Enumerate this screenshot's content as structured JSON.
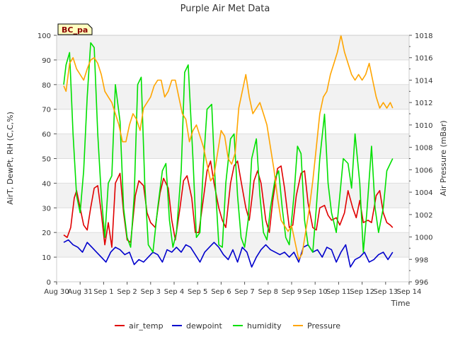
{
  "chart_data": {
    "type": "line",
    "title": "Purple Air Met Data",
    "xlabel": "Time",
    "ylabel_left": "AirT, DewPt, RH (C,C,%)",
    "ylabel_right": "Air Pressure (mBar)",
    "station_label": "BC_pa",
    "ylim_left": [
      0,
      100
    ],
    "ylim_right": [
      996,
      1018
    ],
    "xlim": [
      0,
      15
    ],
    "left_ticks": [
      0,
      10,
      20,
      30,
      40,
      50,
      60,
      70,
      80,
      90,
      100
    ],
    "right_ticks": [
      996,
      998,
      1000,
      1002,
      1004,
      1006,
      1008,
      1010,
      1012,
      1014,
      1016,
      1018
    ],
    "x_ticks": [
      {
        "v": 0,
        "label": "Aug 30"
      },
      {
        "v": 1,
        "label": "Aug 31"
      },
      {
        "v": 2,
        "label": "Sep 1"
      },
      {
        "v": 3,
        "label": "Sep 2"
      },
      {
        "v": 4,
        "label": "Sep 3"
      },
      {
        "v": 5,
        "label": "Sep 4"
      },
      {
        "v": 6,
        "label": "Sep 5"
      },
      {
        "v": 7,
        "label": "Sep 6"
      },
      {
        "v": 8,
        "label": "Sep 7"
      },
      {
        "v": 9,
        "label": "Sep 8"
      },
      {
        "v": 10,
        "label": "Sep 9"
      },
      {
        "v": 11,
        "label": "Sep 10"
      },
      {
        "v": 12,
        "label": "Sep 11"
      },
      {
        "v": 13,
        "label": "Sep 12"
      },
      {
        "v": 14,
        "label": "Sep 13"
      },
      {
        "v": 15,
        "label": "Sep 14"
      }
    ],
    "grid": true,
    "legend_position": "bottom-center",
    "series": [
      {
        "name": "air_temp",
        "color": "#e00000",
        "axis": "left",
        "x": [
          0.3,
          0.45,
          0.6,
          0.75,
          0.85,
          1.0,
          1.15,
          1.3,
          1.45,
          1.6,
          1.75,
          1.9,
          2.05,
          2.2,
          2.35,
          2.5,
          2.7,
          2.85,
          3.0,
          3.15,
          3.35,
          3.5,
          3.7,
          3.85,
          4.0,
          4.2,
          4.4,
          4.55,
          4.75,
          4.9,
          5.05,
          5.25,
          5.4,
          5.55,
          5.75,
          5.9,
          6.05,
          6.25,
          6.4,
          6.55,
          6.7,
          6.9,
          7.05,
          7.2,
          7.4,
          7.55,
          7.7,
          7.9,
          8.05,
          8.2,
          8.4,
          8.55,
          8.7,
          8.9,
          9.05,
          9.2,
          9.4,
          9.55,
          9.7,
          9.9,
          10.05,
          10.2,
          10.4,
          10.55,
          10.7,
          10.9,
          11.05,
          11.2,
          11.4,
          11.55,
          11.7,
          11.9,
          12.05,
          12.25,
          12.4,
          12.6,
          12.75,
          12.9,
          13.05,
          13.25,
          13.4,
          13.6,
          13.75,
          13.9,
          14.05,
          14.2,
          14.3
        ],
        "y": [
          19,
          18,
          22,
          34,
          37,
          30,
          23,
          21,
          30,
          38,
          39,
          28,
          15,
          24,
          14,
          40,
          44,
          28,
          17,
          16,
          35,
          41,
          39,
          28,
          24,
          22,
          36,
          42,
          38,
          25,
          17,
          30,
          41,
          43,
          34,
          20,
          20,
          34,
          45,
          49,
          40,
          30,
          25,
          22,
          40,
          47,
          49,
          38,
          30,
          25,
          41,
          45,
          40,
          25,
          20,
          33,
          46,
          47,
          38,
          22,
          23,
          35,
          44,
          45,
          32,
          22,
          21,
          30,
          31,
          27,
          25,
          26,
          23,
          28,
          37,
          30,
          26,
          33,
          24,
          25,
          24,
          35,
          37,
          28,
          24,
          23,
          22
        ]
      },
      {
        "name": "dewpoint",
        "color": "#0000cc",
        "axis": "left",
        "x": [
          0.3,
          0.5,
          0.7,
          0.9,
          1.1,
          1.3,
          1.5,
          1.7,
          1.9,
          2.1,
          2.3,
          2.5,
          2.7,
          2.9,
          3.1,
          3.3,
          3.5,
          3.7,
          3.9,
          4.1,
          4.3,
          4.5,
          4.7,
          4.9,
          5.1,
          5.3,
          5.5,
          5.7,
          5.9,
          6.1,
          6.3,
          6.5,
          6.7,
          6.9,
          7.1,
          7.3,
          7.5,
          7.7,
          7.9,
          8.1,
          8.3,
          8.5,
          8.7,
          8.9,
          9.1,
          9.3,
          9.5,
          9.7,
          9.9,
          10.1,
          10.3,
          10.5,
          10.7,
          10.9,
          11.1,
          11.3,
          11.5,
          11.7,
          11.9,
          12.1,
          12.3,
          12.5,
          12.7,
          12.9,
          13.1,
          13.3,
          13.5,
          13.7,
          13.9,
          14.1,
          14.3
        ],
        "y": [
          16,
          17,
          15,
          14,
          12,
          16,
          14,
          12,
          10,
          8,
          12,
          14,
          13,
          11,
          12,
          7,
          9,
          8,
          10,
          12,
          11,
          8,
          13,
          12,
          14,
          12,
          15,
          14,
          11,
          8,
          12,
          14,
          16,
          14,
          11,
          9,
          13,
          8,
          14,
          12,
          6,
          10,
          13,
          15,
          13,
          12,
          11,
          12,
          10,
          12,
          8,
          14,
          15,
          12,
          13,
          10,
          14,
          13,
          8,
          12,
          15,
          6,
          9,
          10,
          12,
          8,
          9,
          11,
          12,
          9,
          12
        ]
      },
      {
        "name": "humidity",
        "color": "#00e000",
        "axis": "left",
        "x": [
          0.3,
          0.4,
          0.55,
          0.7,
          0.85,
          1.0,
          1.15,
          1.3,
          1.45,
          1.6,
          1.75,
          1.9,
          2.05,
          2.2,
          2.35,
          2.5,
          2.7,
          2.85,
          3.0,
          3.15,
          3.3,
          3.45,
          3.6,
          3.75,
          3.9,
          4.1,
          4.3,
          4.5,
          4.65,
          4.8,
          4.95,
          5.1,
          5.3,
          5.45,
          5.6,
          5.8,
          5.95,
          6.1,
          6.25,
          6.4,
          6.6,
          6.75,
          6.9,
          7.05,
          7.2,
          7.4,
          7.55,
          7.7,
          7.85,
          8.0,
          8.15,
          8.3,
          8.5,
          8.65,
          8.8,
          8.95,
          9.1,
          9.3,
          9.45,
          9.6,
          9.75,
          9.9,
          10.1,
          10.25,
          10.4,
          10.55,
          10.7,
          10.9,
          11.05,
          11.2,
          11.4,
          11.55,
          11.7,
          11.9,
          12.05,
          12.2,
          12.4,
          12.55,
          12.7,
          12.9,
          13.05,
          13.2,
          13.4,
          13.55,
          13.7,
          13.9,
          14.05,
          14.2,
          14.3
        ],
        "y": [
          80,
          88,
          93,
          60,
          35,
          28,
          45,
          75,
          97,
          95,
          60,
          35,
          18,
          40,
          43,
          80,
          65,
          30,
          18,
          14,
          35,
          80,
          83,
          40,
          15,
          12,
          30,
          45,
          48,
          25,
          14,
          20,
          45,
          85,
          88,
          50,
          18,
          20,
          48,
          70,
          72,
          40,
          15,
          14,
          40,
          58,
          60,
          35,
          18,
          14,
          25,
          50,
          58,
          35,
          20,
          17,
          30,
          42,
          45,
          30,
          18,
          15,
          35,
          55,
          52,
          25,
          15,
          12,
          30,
          50,
          68,
          40,
          28,
          20,
          35,
          50,
          48,
          38,
          60,
          40,
          12,
          28,
          55,
          30,
          20,
          30,
          45,
          48,
          50
        ]
      },
      {
        "name": "Pressure",
        "color": "#ffa500",
        "axis": "right",
        "x": [
          0.3,
          0.4,
          0.55,
          0.7,
          0.85,
          1.0,
          1.15,
          1.3,
          1.45,
          1.6,
          1.75,
          1.9,
          2.05,
          2.2,
          2.35,
          2.5,
          2.65,
          2.8,
          2.95,
          3.1,
          3.25,
          3.4,
          3.55,
          3.7,
          3.85,
          4.0,
          4.15,
          4.3,
          4.45,
          4.6,
          4.75,
          4.9,
          5.05,
          5.2,
          5.35,
          5.5,
          5.65,
          5.8,
          5.95,
          6.1,
          6.25,
          6.4,
          6.55,
          6.7,
          6.85,
          7.0,
          7.15,
          7.3,
          7.45,
          7.6,
          7.75,
          7.9,
          8.05,
          8.2,
          8.35,
          8.5,
          8.65,
          8.8,
          8.95,
          9.1,
          9.25,
          9.4,
          9.55,
          9.7,
          9.85,
          10.0,
          10.15,
          10.3,
          10.45,
          10.6,
          10.75,
          10.9,
          11.05,
          11.2,
          11.35,
          11.5,
          11.65,
          11.8,
          11.95,
          12.1,
          12.25,
          12.4,
          12.55,
          12.7,
          12.85,
          13.0,
          13.15,
          13.3,
          13.45,
          13.6,
          13.75,
          13.9,
          14.05,
          14.2,
          14.3
        ],
        "y": [
          1013.5,
          1013,
          1015.5,
          1016,
          1015,
          1014.5,
          1014,
          1015,
          1015.8,
          1016,
          1015.5,
          1014.5,
          1013,
          1012.5,
          1012,
          1011,
          1010,
          1008.5,
          1008.5,
          1010,
          1011,
          1010.5,
          1009.5,
          1011.5,
          1012,
          1012.5,
          1013.5,
          1014,
          1014,
          1012.5,
          1013,
          1014,
          1014,
          1012.5,
          1011,
          1010.5,
          1008.5,
          1009.5,
          1010,
          1009,
          1008,
          1006.5,
          1005,
          1005.5,
          1007.5,
          1009.5,
          1009,
          1007,
          1006.5,
          1007.5,
          1011.5,
          1013,
          1014.5,
          1012.5,
          1011,
          1011.5,
          1012,
          1011,
          1010,
          1008,
          1006,
          1003.5,
          1001.5,
          1001,
          1000.5,
          1001,
          999.5,
          998,
          998.5,
          1000.5,
          1002.5,
          1005,
          1008,
          1011,
          1012.5,
          1013,
          1014.5,
          1015.5,
          1016.5,
          1018,
          1016.5,
          1015.5,
          1014.5,
          1014,
          1014.5,
          1014,
          1014.5,
          1015.5,
          1014,
          1012.5,
          1011.5,
          1012,
          1011.5,
          1012,
          1011.5
        ]
      }
    ]
  }
}
